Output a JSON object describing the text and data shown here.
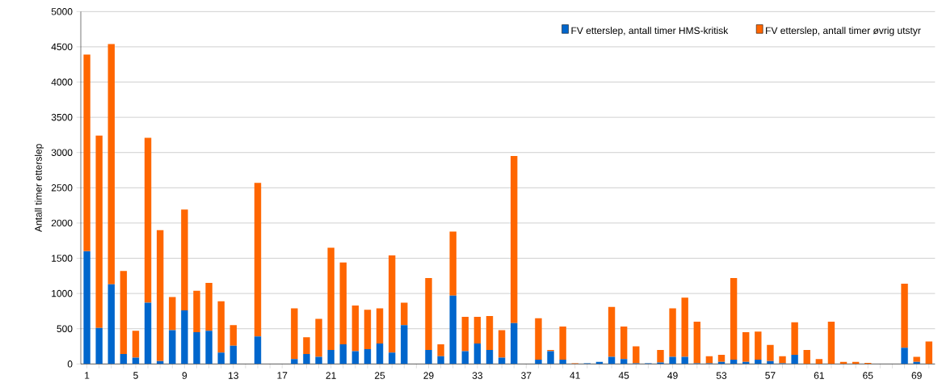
{
  "chart_data": {
    "type": "bar",
    "stacked": true,
    "ylabel": "Antall timer etterslep",
    "categories": [
      "1",
      null,
      null,
      null,
      "5",
      null,
      null,
      null,
      "9",
      null,
      null,
      null,
      "13",
      null,
      null,
      null,
      "17",
      null,
      null,
      null,
      "21",
      null,
      null,
      null,
      "25",
      null,
      null,
      null,
      "29",
      null,
      null,
      null,
      "33",
      null,
      null,
      null,
      "37",
      null,
      null,
      null,
      "41",
      null,
      null,
      null,
      "45",
      null,
      null,
      null,
      "49",
      null,
      null,
      null,
      "53",
      null,
      null,
      null,
      "57",
      null,
      null,
      null,
      "61",
      null,
      null,
      null,
      "65",
      null,
      null,
      null,
      "69",
      null
    ],
    "series": [
      {
        "name": "FV etterslep, antall timer HMS-kritisk",
        "color": "#0066cc",
        "values": [
          1600,
          510,
          1130,
          140,
          90,
          870,
          40,
          480,
          760,
          450,
          470,
          160,
          260,
          0,
          390,
          0,
          0,
          70,
          140,
          100,
          200,
          280,
          180,
          210,
          290,
          160,
          550,
          0,
          200,
          110,
          970,
          180,
          290,
          200,
          90,
          580,
          0,
          60,
          180,
          60,
          0,
          10,
          30,
          100,
          70,
          10,
          10,
          20,
          100,
          100,
          10,
          10,
          30,
          60,
          30,
          60,
          40,
          10,
          130,
          0,
          0,
          0,
          0,
          0,
          0,
          0,
          0,
          230,
          30,
          0
        ]
      },
      {
        "name": "FV etterslep, antall timer øvrig utstyr",
        "color": "#ff6600",
        "values": [
          2790,
          2730,
          3410,
          1180,
          380,
          2340,
          1860,
          470,
          1430,
          590,
          680,
          730,
          290,
          0,
          2180,
          0,
          0,
          720,
          240,
          540,
          1450,
          1160,
          650,
          560,
          500,
          1380,
          320,
          0,
          1020,
          170,
          910,
          490,
          380,
          480,
          390,
          2370,
          0,
          590,
          20,
          470,
          10,
          0,
          0,
          710,
          460,
          240,
          0,
          180,
          690,
          840,
          590,
          100,
          100,
          1160,
          420,
          400,
          230,
          100,
          460,
          200,
          70,
          600,
          30,
          30,
          15,
          0,
          0,
          910,
          70,
          320
        ]
      }
    ],
    "ylim": [
      0,
      5000
    ],
    "yticks": [
      0,
      500,
      1000,
      1500,
      2000,
      2500,
      3000,
      3500,
      4000,
      4500,
      5000
    ],
    "grid": "y",
    "legend": "top right"
  }
}
